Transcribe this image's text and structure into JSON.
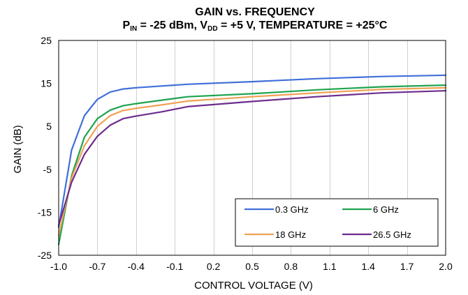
{
  "chart_data": {
    "type": "line",
    "title": "GAIN vs. FREQUENCY",
    "subtitle": {
      "p_main": "P",
      "p_sub": "IN",
      "mid": " = -25 dBm, V",
      "v_sub": "DD",
      "rest": " = +5 V, TEMPERATURE = +25°C"
    },
    "xlabel": "CONTROL VOLTAGE (V)",
    "ylabel": "GAIN (dB)",
    "xlim": [
      -1.0,
      2.0
    ],
    "ylim": [
      -25,
      25
    ],
    "x_ticks": [
      -1.0,
      -0.7,
      -0.4,
      -0.1,
      0.2,
      0.5,
      0.8,
      1.1,
      1.4,
      1.7,
      2.0
    ],
    "x_tick_labels": [
      "-1.0",
      "-0.7",
      "-0.4",
      "-0.1",
      "0.2",
      "0.5",
      "0.8",
      "1.1",
      "1.4",
      "1.7",
      "2.0"
    ],
    "y_ticks": [
      -25,
      -15,
      -5,
      5,
      15,
      25
    ],
    "y_tick_labels": [
      "-25",
      "-15",
      "-5",
      "5",
      "15",
      "25"
    ],
    "grid": "vertical",
    "legend_position": "bottom-right",
    "x": [
      -1.0,
      -0.9,
      -0.8,
      -0.7,
      -0.6,
      -0.5,
      -0.4,
      -0.2,
      0.0,
      0.5,
      1.0,
      1.5,
      2.0
    ],
    "series": [
      {
        "name": "0.3 GHz",
        "color": "#3f6fd8",
        "values": [
          -18.5,
          -0.5,
          7.5,
          11.3,
          13.0,
          13.7,
          14.0,
          14.4,
          14.8,
          15.4,
          16.1,
          16.6,
          16.9
        ]
      },
      {
        "name": "6 GHz",
        "color": "#1ea34f",
        "values": [
          -22.5,
          -6.5,
          2.5,
          6.8,
          8.8,
          9.8,
          10.3,
          11.1,
          11.9,
          12.6,
          13.5,
          14.2,
          14.6
        ]
      },
      {
        "name": "18 GHz",
        "color": "#f0a054",
        "values": [
          -20.5,
          -7.0,
          0.5,
          5.0,
          7.5,
          8.7,
          9.2,
          10.0,
          10.9,
          11.9,
          12.8,
          13.6,
          14.0
        ]
      },
      {
        "name": "26.5 GHz",
        "color": "#6c2c8c",
        "values": [
          -18.0,
          -8.0,
          -1.5,
          2.7,
          5.3,
          6.8,
          7.4,
          8.4,
          9.6,
          10.8,
          11.9,
          12.8,
          13.3
        ]
      }
    ]
  }
}
